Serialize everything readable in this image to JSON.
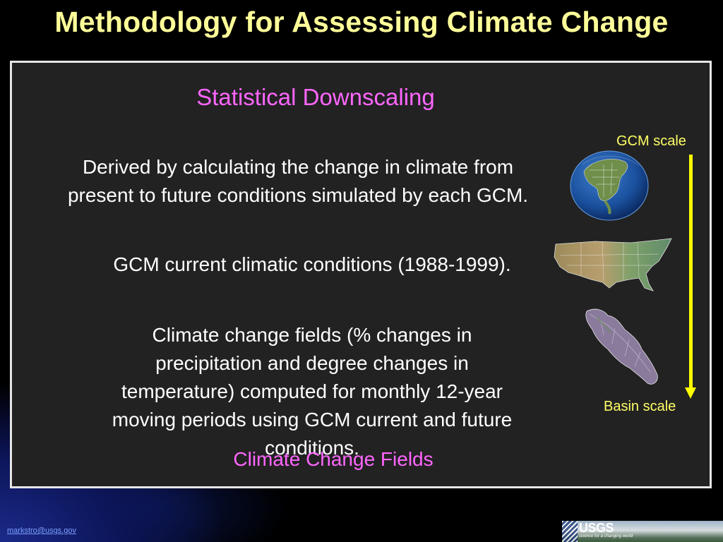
{
  "slide": {
    "title": "Methodology for Assessing Climate Change",
    "subheading": "Statistical Downscaling",
    "paragraphs": [
      "Derived by calculating the change in climate from present to future conditions simulated by each GCM.",
      "GCM current climatic conditions (1988-1999).",
      "Climate change fields (% changes in precipitation and degree changes in temperature) computed for monthly 12-year moving periods using GCM current and future conditions."
    ],
    "caption": "Climate Change Fields"
  },
  "scale_figure": {
    "top_label": "GCM scale",
    "bottom_label": "Basin scale",
    "arrow_color": "#ffff00",
    "images": [
      "globe-north-america",
      "conterminous-us-relief-map",
      "river-basin-map"
    ]
  },
  "footer": {
    "email": "markstro@usgs.gov",
    "logo_text": "USGS",
    "logo_tagline": "science for a changing world"
  },
  "colors": {
    "title": "#ffff99",
    "subheading": "#ff66ff",
    "body_text": "#ffffff",
    "panel_background": "#222222",
    "panel_border": "#e6e6e6",
    "scale_label": "#ffff66"
  }
}
